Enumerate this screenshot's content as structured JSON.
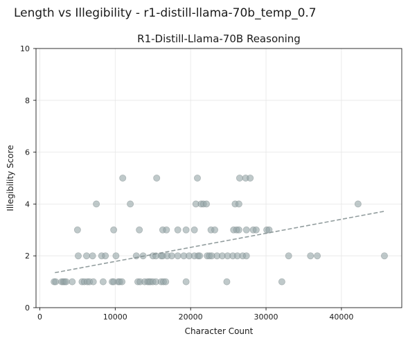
{
  "figure": {
    "suptitle": "Length vs Illegibility - r1-distill-llama-70b_temp_0.7"
  },
  "chart_data": {
    "type": "scatter",
    "title": "R1-Distill-Llama-70B Reasoning",
    "xlabel": "Character Count",
    "ylabel": "Illegibility Score",
    "xlim": [
      -500,
      48000
    ],
    "ylim": [
      0,
      10
    ],
    "xticks": [
      0,
      10000,
      20000,
      30000,
      40000
    ],
    "xtick_labels": [
      "0",
      "10000",
      "20000",
      "30000",
      "40000"
    ],
    "yticks": [
      0,
      2,
      4,
      6,
      8,
      10
    ],
    "ytick_labels": [
      "0",
      "2",
      "4",
      "6",
      "8",
      "10"
    ],
    "grid": true,
    "colors": {
      "points": "#95a5a6",
      "trend": "#7f8c8d"
    },
    "trendline": {
      "x": [
        2000,
        45700
      ],
      "y": [
        1.35,
        3.72
      ]
    },
    "points": [
      [
        1900,
        1
      ],
      [
        2100,
        1
      ],
      [
        2900,
        1
      ],
      [
        3100,
        1
      ],
      [
        3300,
        1
      ],
      [
        3500,
        1
      ],
      [
        4300,
        1
      ],
      [
        5600,
        1
      ],
      [
        5900,
        1
      ],
      [
        6300,
        1
      ],
      [
        6600,
        1
      ],
      [
        7100,
        1
      ],
      [
        8400,
        1
      ],
      [
        9600,
        1
      ],
      [
        9800,
        1
      ],
      [
        10400,
        1
      ],
      [
        10600,
        1
      ],
      [
        10900,
        1
      ],
      [
        13000,
        1
      ],
      [
        13300,
        1
      ],
      [
        13900,
        1
      ],
      [
        14300,
        1
      ],
      [
        14500,
        1
      ],
      [
        14700,
        1
      ],
      [
        15000,
        1
      ],
      [
        15400,
        1
      ],
      [
        16100,
        1
      ],
      [
        16400,
        1
      ],
      [
        16700,
        1
      ],
      [
        19400,
        1
      ],
      [
        24800,
        1
      ],
      [
        32100,
        1
      ],
      [
        5100,
        2
      ],
      [
        6200,
        2
      ],
      [
        7000,
        2
      ],
      [
        8200,
        2
      ],
      [
        8700,
        2
      ],
      [
        10100,
        2
      ],
      [
        12800,
        2
      ],
      [
        13700,
        2
      ],
      [
        15000,
        2
      ],
      [
        15400,
        2
      ],
      [
        16100,
        2
      ],
      [
        16300,
        2
      ],
      [
        16900,
        2
      ],
      [
        17500,
        2
      ],
      [
        18300,
        2
      ],
      [
        19100,
        2
      ],
      [
        19800,
        2
      ],
      [
        20500,
        2
      ],
      [
        21000,
        2
      ],
      [
        21200,
        2
      ],
      [
        22200,
        2
      ],
      [
        22500,
        2
      ],
      [
        22800,
        2
      ],
      [
        23500,
        2
      ],
      [
        24200,
        2
      ],
      [
        24900,
        2
      ],
      [
        25600,
        2
      ],
      [
        26200,
        2
      ],
      [
        26900,
        2
      ],
      [
        27400,
        2
      ],
      [
        33000,
        2
      ],
      [
        35900,
        2
      ],
      [
        36800,
        2
      ],
      [
        45700,
        2
      ],
      [
        5000,
        3
      ],
      [
        9800,
        3
      ],
      [
        13200,
        3
      ],
      [
        16300,
        3
      ],
      [
        16800,
        3
      ],
      [
        18300,
        3
      ],
      [
        19400,
        3
      ],
      [
        20500,
        3
      ],
      [
        22700,
        3
      ],
      [
        23200,
        3
      ],
      [
        25700,
        3
      ],
      [
        26100,
        3
      ],
      [
        26400,
        3
      ],
      [
        27400,
        3
      ],
      [
        28300,
        3
      ],
      [
        28700,
        3
      ],
      [
        30100,
        3
      ],
      [
        30400,
        3
      ],
      [
        7500,
        4
      ],
      [
        12000,
        4
      ],
      [
        20700,
        4
      ],
      [
        21400,
        4
      ],
      [
        21700,
        4
      ],
      [
        22100,
        4
      ],
      [
        25900,
        4
      ],
      [
        26400,
        4
      ],
      [
        42200,
        4
      ],
      [
        11000,
        5
      ],
      [
        15500,
        5
      ],
      [
        20900,
        5
      ],
      [
        26500,
        5
      ],
      [
        27300,
        5
      ],
      [
        27900,
        5
      ]
    ]
  }
}
